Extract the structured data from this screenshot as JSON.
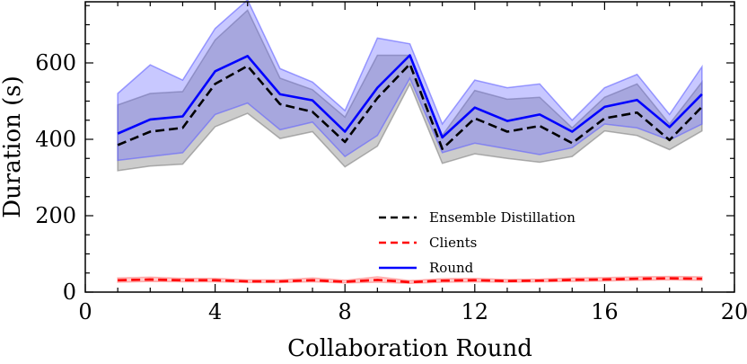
{
  "chart_data": {
    "type": "line",
    "xlabel": "Collaboration Round",
    "ylabel": "Duration (s)",
    "xlim": [
      0,
      20
    ],
    "ylim": [
      0,
      760
    ],
    "xticks": [
      0,
      4,
      8,
      12,
      16,
      20
    ],
    "yticks": [
      0,
      200,
      400,
      600
    ],
    "grid": false,
    "legend_position": "lower-center",
    "x": [
      1,
      2,
      3,
      4,
      5,
      6,
      7,
      8,
      9,
      10,
      11,
      12,
      13,
      14,
      15,
      16,
      17,
      18,
      19
    ],
    "series": [
      {
        "name": "Ensemble Distillation",
        "color": "#000000",
        "linestyle": "dashed",
        "band_color": "#808080",
        "values": [
          385,
          420,
          430,
          545,
          592,
          492,
          472,
          393,
          508,
          597,
          375,
          455,
          420,
          435,
          390,
          455,
          470,
          398,
          485
        ],
        "lower": [
          318,
          330,
          335,
          433,
          468,
          402,
          420,
          328,
          382,
          545,
          337,
          362,
          350,
          340,
          355,
          422,
          410,
          373,
          422
        ],
        "upper": [
          490,
          520,
          525,
          660,
          738,
          560,
          530,
          458,
          620,
          620,
          410,
          528,
          505,
          510,
          430,
          510,
          545,
          440,
          550
        ]
      },
      {
        "name": "Clients",
        "color": "#ff0000",
        "linestyle": "dashed",
        "band_color": "#ff8080",
        "values": [
          31,
          33,
          31,
          31,
          28,
          28,
          31,
          27,
          32,
          26,
          30,
          31,
          29,
          30,
          32,
          33,
          35,
          36,
          35
        ],
        "lower": [
          26,
          28,
          27,
          27,
          25,
          25,
          27,
          24,
          26,
          23,
          26,
          27,
          26,
          27,
          28,
          29,
          31,
          32,
          31
        ],
        "upper": [
          37,
          39,
          36,
          36,
          32,
          32,
          37,
          31,
          40,
          30,
          35,
          36,
          33,
          34,
          37,
          38,
          40,
          41,
          40
        ]
      },
      {
        "name": "Round",
        "color": "#0000ff",
        "linestyle": "solid",
        "band_color": "#6060ff",
        "values": [
          415,
          452,
          460,
          578,
          618,
          518,
          502,
          420,
          535,
          620,
          405,
          483,
          448,
          465,
          420,
          485,
          503,
          432,
          518
        ],
        "lower": [
          345,
          355,
          365,
          465,
          495,
          425,
          445,
          355,
          410,
          560,
          365,
          390,
          375,
          360,
          378,
          440,
          430,
          398,
          440
        ],
        "upper": [
          520,
          595,
          555,
          690,
          765,
          585,
          550,
          475,
          665,
          650,
          440,
          555,
          535,
          545,
          450,
          535,
          570,
          465,
          590
        ]
      }
    ]
  }
}
